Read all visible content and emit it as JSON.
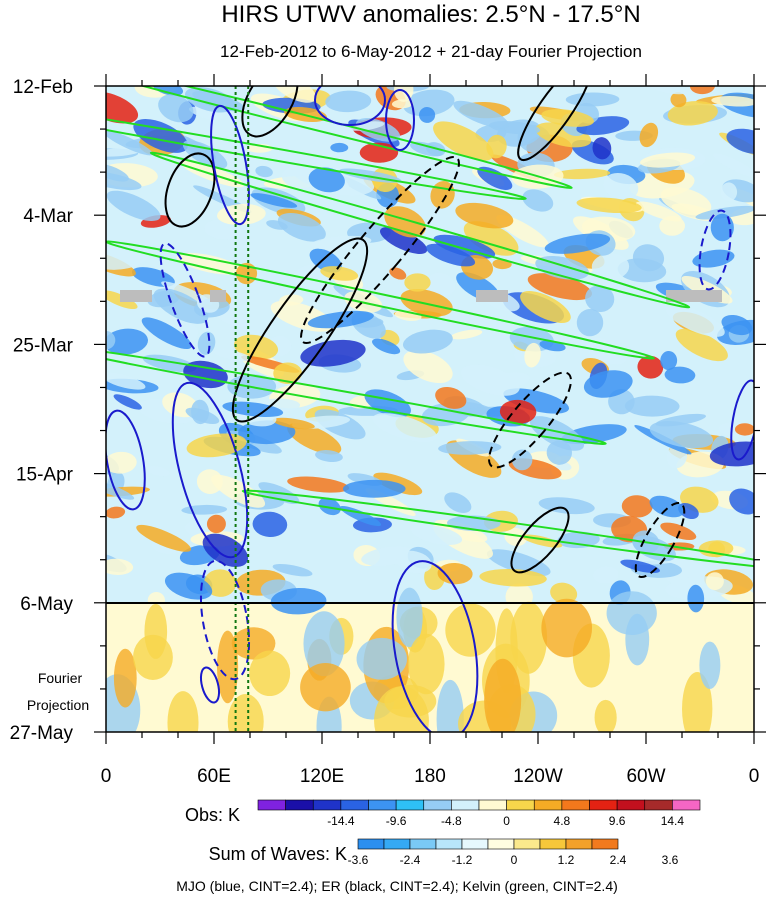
{
  "chart_data": {
    "type": "heatmap",
    "title": "HIRS UTWV anomalies: 2.5°N - 17.5°N",
    "subtitle": "12-Feb-2012 to 6-May-2012 + 21-day Fourier Projection",
    "x_ticks": [
      "0",
      "60E",
      "120E",
      "180",
      "120W",
      "60W",
      "0"
    ],
    "y_ticks": [
      "12-Feb",
      "4-Mar",
      "25-Mar",
      "15-Apr",
      "6-May",
      "27-May"
    ],
    "projection_label_line1": "Fourier",
    "projection_label_line2": "Projection",
    "x_range_deg_east": [
      0,
      360
    ],
    "y_range": [
      "2012-02-12",
      "2012-05-27"
    ],
    "projection_start": "2012-05-06",
    "obs_colorbar": {
      "label": "Obs: K",
      "tick_labels": [
        "-14.4",
        "-9.6",
        "-4.8",
        "0",
        "4.8",
        "9.6",
        "14.4"
      ],
      "colors": [
        "#7f22e0",
        "#1a0fa8",
        "#1f33c9",
        "#2a63e4",
        "#3c93f2",
        "#2ec0f6",
        "#96cdf4",
        "#d3f1fb",
        "#fffad2",
        "#f7d64b",
        "#f5ab25",
        "#f3781c",
        "#e42213",
        "#c3101e",
        "#a62a2a",
        "#f566c4"
      ]
    },
    "waves_colorbar": {
      "label": "Sum of Waves: K",
      "tick_labels": [
        "-3.6",
        "-2.4",
        "-1.2",
        "0",
        "1.2",
        "2.4",
        "3.6"
      ],
      "colors": [
        "#2b8ff0",
        "#35a9f4",
        "#7ac9f5",
        "#b8e6fb",
        "#e6f8fd",
        "#fffde1",
        "#fbe98c",
        "#f6c73a",
        "#f3a12a",
        "#f17a1e"
      ]
    },
    "footer": "MJO (blue, CINT=2.4); ER (black, CINT=2.4); Kelvin (green, CINT=2.4)",
    "series_colors": {
      "MJO": "#1a1acc",
      "ER": "#000000",
      "Kelvin": "#22dd22"
    },
    "reference_lines_deg_east": [
      72,
      79
    ]
  }
}
